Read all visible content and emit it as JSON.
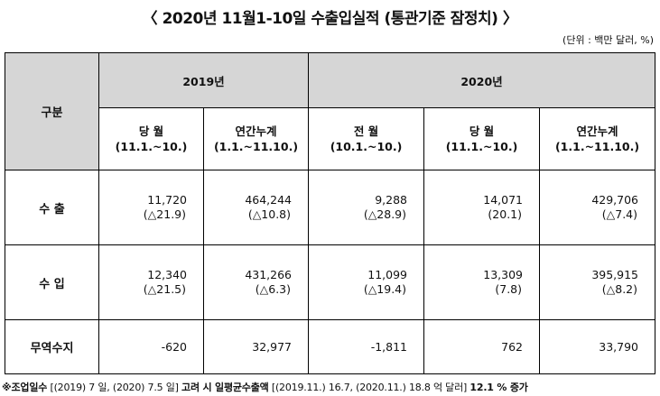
{
  "title": "〈 2020년  11월1-10일  수출입실적 (통관기준  잠정치) 〉",
  "unit": "(단위 : 백만 달러, %)",
  "table": {
    "corner": "구분",
    "year_2019": "2019년",
    "year_2020": "2020년",
    "columns": [
      {
        "label": "당 월",
        "range": "(11.1.~10.)"
      },
      {
        "label": "연간누계",
        "range": "(1.1.~11.10.)"
      },
      {
        "label": "전 월",
        "range": "(10.1.~10.)"
      },
      {
        "label": "당 월",
        "range": "(11.1.~10.)"
      },
      {
        "label": "연간누계",
        "range": "(1.1.~11.10.)"
      }
    ],
    "rows": [
      {
        "label": "수 출",
        "cells": [
          {
            "value": "11,720",
            "change": "(△21.9)"
          },
          {
            "value": "464,244",
            "change": "(△10.8)"
          },
          {
            "value": "9,288",
            "change": "(△28.9)"
          },
          {
            "value": "14,071",
            "change": "(20.1)"
          },
          {
            "value": "429,706",
            "change": "(△7.4)"
          }
        ]
      },
      {
        "label": "수 입",
        "cells": [
          {
            "value": "12,340",
            "change": "(△21.5)"
          },
          {
            "value": "431,266",
            "change": "(△6.3)"
          },
          {
            "value": "11,099",
            "change": "(△19.4)"
          },
          {
            "value": "13,309",
            "change": "(7.8)"
          },
          {
            "value": "395,915",
            "change": "(△8.2)"
          }
        ]
      }
    ],
    "balance": {
      "label": "무역수지",
      "cells": [
        "-620",
        "32,977",
        "-1,811",
        "762",
        "33,790"
      ]
    }
  },
  "note": {
    "prefix": "※조업일수",
    "days": " [(2019) 7 일, (2020) 7.5 일] ",
    "mid": "고려 시 일평균수출액",
    "avg": " [(2019.11.) 16.7, (2020.11.) 18.8 억 달러] ",
    "result": " 12.1 % 증가"
  }
}
